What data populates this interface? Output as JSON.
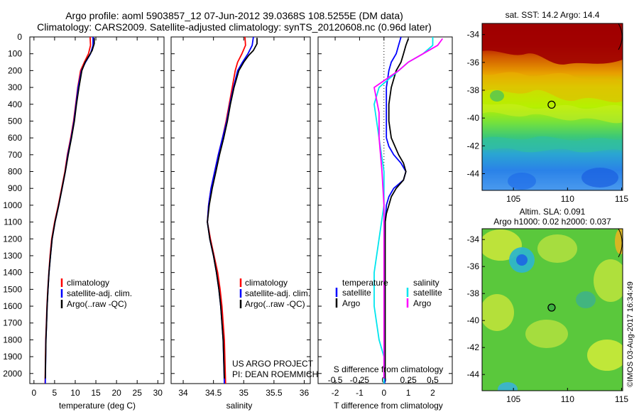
{
  "header": {
    "title_line1": "Argo profile: aoml 5903857_12 07-Jun-2012 39.0368S 108.5255E (DM data)",
    "title_line2": "Climatology: CARS2009. Satellite-adjusted climatology: synTS_20120608.nc (0.96d later)"
  },
  "depth_axis": {
    "ticks": [
      0,
      100,
      200,
      300,
      400,
      500,
      600,
      700,
      800,
      900,
      1000,
      1100,
      1200,
      1300,
      1400,
      1500,
      1600,
      1700,
      1800,
      1900,
      2000
    ],
    "range": [
      0,
      2060
    ]
  },
  "colors": {
    "climatology": "#ff0000",
    "satellite": "#0000ff",
    "argo": "#000000",
    "salinity_satellite": "#00e5ee",
    "salinity_argo": "#ff00ff"
  },
  "chart_data": [
    {
      "id": "temperature",
      "type": "line",
      "xlabel": "temperature (deg C)",
      "ylabel": "depth",
      "xlim": [
        -1,
        31.5
      ],
      "xticks": [
        0,
        5,
        10,
        15,
        20,
        25,
        30
      ],
      "legend": [
        "climatology",
        "satellite-adj. clim.",
        "Argo(..raw -QC)"
      ],
      "legend_position": "lower-right",
      "series": [
        {
          "name": "climatology",
          "color": "red",
          "x": [
            13.6,
            13.7,
            13.2,
            12.2,
            11.3,
            10.6,
            10.1,
            9.6,
            8.9,
            8.1,
            7.5,
            6.7,
            5.9,
            5.0,
            4.3,
            3.9,
            3.6,
            3.35,
            3.15,
            3.0,
            2.85,
            2.7
          ],
          "y": [
            0,
            50,
            100,
            150,
            200,
            300,
            400,
            500,
            600,
            700,
            800,
            900,
            1000,
            1100,
            1200,
            1300,
            1400,
            1500,
            1600,
            1700,
            1800,
            2060
          ]
        },
        {
          "name": "satellite-adj. clim.",
          "color": "blue",
          "x": [
            14.3,
            14.3,
            13.7,
            12.5,
            11.5,
            10.7,
            10.2,
            9.7,
            9.0,
            8.2,
            7.6,
            6.8,
            6.0,
            5.1,
            4.4,
            4.0,
            3.65,
            3.4,
            3.2,
            3.05,
            2.9,
            2.75
          ],
          "y": [
            0,
            50,
            100,
            150,
            200,
            300,
            400,
            500,
            600,
            700,
            800,
            900,
            1000,
            1100,
            1200,
            1300,
            1400,
            1500,
            1600,
            1700,
            1800,
            2060
          ]
        },
        {
          "name": "Argo(..raw -QC)",
          "color": "black",
          "x": [
            14.6,
            14.6,
            14.1,
            13.4,
            12.4,
            11.6,
            10.9,
            10.3,
            9.8,
            9.1,
            8.3,
            7.6,
            6.8,
            6.0,
            5.1,
            4.4,
            4.0,
            3.65,
            3.4,
            3.2,
            3.05,
            2.9,
            2.75
          ],
          "y": [
            5,
            40,
            80,
            110,
            150,
            200,
            300,
            400,
            500,
            600,
            700,
            800,
            900,
            1000,
            1100,
            1200,
            1300,
            1400,
            1500,
            1600,
            1700,
            1800,
            2030
          ]
        }
      ]
    },
    {
      "id": "salinity",
      "type": "line",
      "xlabel": "salinity",
      "xlim": [
        33.8,
        36.1
      ],
      "xticks": [
        34,
        34.5,
        35,
        35.5,
        36
      ],
      "xticklabels": [
        "34",
        "34.5",
        "35",
        "35.5",
        "36"
      ],
      "legend": [
        "climatology",
        "satellite-adj. clim.",
        "Argo(..raw -QC)"
      ],
      "legend_position": "lower-right",
      "annotation": [
        "US ARGO PROJECT",
        "PI: DEAN ROEMMICH"
      ],
      "series": [
        {
          "name": "climatology",
          "color": "red",
          "x": [
            35.02,
            35.03,
            34.97,
            34.9,
            34.86,
            34.81,
            34.76,
            34.71,
            34.65,
            34.58,
            34.52,
            34.46,
            34.42,
            34.4,
            34.45,
            34.51,
            34.57,
            34.61,
            34.64,
            34.66,
            34.68,
            34.7
          ],
          "y": [
            0,
            50,
            100,
            150,
            200,
            300,
            400,
            500,
            600,
            700,
            800,
            900,
            1000,
            1100,
            1200,
            1300,
            1400,
            1500,
            1600,
            1700,
            1800,
            2060
          ]
        },
        {
          "name": "satellite-adj. clim.",
          "color": "blue",
          "x": [
            35.16,
            35.14,
            35.07,
            34.98,
            34.9,
            34.83,
            34.77,
            34.72,
            34.65,
            34.58,
            34.52,
            34.46,
            34.42,
            34.4,
            34.44,
            34.5,
            34.55,
            34.59,
            34.62,
            34.64,
            34.66,
            34.68
          ],
          "y": [
            0,
            50,
            100,
            150,
            200,
            300,
            400,
            500,
            600,
            700,
            800,
            900,
            1000,
            1100,
            1200,
            1300,
            1400,
            1500,
            1600,
            1700,
            1800,
            2060
          ]
        },
        {
          "name": "Argo(..raw -QC)",
          "color": "black",
          "x": [
            35.22,
            35.22,
            35.16,
            35.08,
            35.0,
            34.92,
            34.84,
            34.78,
            34.73,
            34.67,
            34.6,
            34.54,
            34.48,
            34.43,
            34.4,
            34.44,
            34.5,
            34.55,
            34.59,
            34.62,
            34.64,
            34.66,
            34.68
          ],
          "y": [
            5,
            40,
            80,
            110,
            150,
            200,
            300,
            400,
            500,
            600,
            700,
            800,
            900,
            1000,
            1100,
            1200,
            1300,
            1400,
            1500,
            1600,
            1700,
            1800,
            2030
          ]
        }
      ]
    },
    {
      "id": "difference",
      "type": "line",
      "xlabel": "T difference from climatology",
      "xlabel_top": "S difference from climatology",
      "xlim": [
        -2.7,
        2.8
      ],
      "xticks": [
        -2,
        -1,
        0,
        1,
        2
      ],
      "s_xticklabels": [
        "-0.5",
        "-0.25",
        "0",
        "0.25",
        "0.5"
      ],
      "zero_line": "dotted",
      "legend_temperature": {
        "title": "temperature",
        "entries": [
          "satellite",
          "Argo"
        ]
      },
      "legend_salinity": {
        "title": "salinity",
        "entries": [
          "satellite",
          "Argo"
        ]
      },
      "legend_position": "lower-center",
      "series": [
        {
          "name": "temperature satellite",
          "color": "blue",
          "x": [
            0.7,
            0.6,
            0.5,
            0.3,
            0.2,
            0.1,
            0.1,
            0.1,
            0.1,
            0.2,
            0.4,
            0.7,
            0.9,
            0.8,
            0.4,
            0.2,
            0.1,
            0.05,
            0.03,
            0.03,
            0.03,
            0.03,
            0.03
          ],
          "y": [
            0,
            50,
            100,
            150,
            200,
            300,
            400,
            500,
            600,
            650,
            700,
            750,
            800,
            850,
            900,
            950,
            1000,
            1100,
            1300,
            1500,
            1700,
            1900,
            2060
          ]
        },
        {
          "name": "temperature Argo",
          "color": "black",
          "x": [
            1.0,
            0.9,
            0.8,
            0.7,
            0.5,
            0.3,
            0.2,
            0.2,
            0.3,
            0.6,
            0.8,
            0.9,
            0.8,
            0.5,
            0.3,
            0.2,
            0.1,
            0.05,
            0.05,
            0.05,
            0.05,
            0.05
          ],
          "y": [
            10,
            50,
            100,
            150,
            200,
            300,
            400,
            500,
            600,
            700,
            750,
            800,
            850,
            900,
            950,
            1000,
            1050,
            1100,
            1300,
            1500,
            1700,
            2030
          ]
        },
        {
          "name": "salinity satellite",
          "color": "cyan",
          "x": [
            0.5,
            0.5,
            0.4,
            0.25,
            0.15,
            -0.05,
            -0.1,
            -0.05,
            0.0,
            0.0,
            -0.05,
            -0.1,
            -0.1,
            -0.05,
            0.0,
            0.0
          ],
          "y": [
            0,
            50,
            100,
            150,
            200,
            300,
            400,
            600,
            800,
            1000,
            1200,
            1400,
            1600,
            1800,
            1900,
            2060
          ]
        },
        {
          "name": "salinity Argo",
          "color": "magenta",
          "x": [
            0.6,
            0.55,
            0.4,
            0.25,
            0.15,
            -0.1,
            -0.05,
            -0.05,
            -0.02,
            0.0,
            0.0,
            0.0,
            0.0
          ],
          "y": [
            10,
            50,
            100,
            150,
            200,
            300,
            450,
            600,
            800,
            1000,
            1200,
            1500,
            2030
          ]
        }
      ]
    }
  ],
  "maps": [
    {
      "id": "sst-map",
      "title": "sat. SST: 14.2 Argo: 14.4",
      "yticklabels": [
        "-34",
        "-36",
        "-38",
        "-40",
        "-42",
        "-44"
      ],
      "xticklabels": [
        "105",
        "110",
        "115"
      ],
      "lat_range": [
        -45.2,
        -33.2
      ],
      "lon_range": [
        102.1,
        115.1
      ],
      "marker": {
        "lon": 108.53,
        "lat": -39.04,
        "style": "open-circle"
      }
    },
    {
      "id": "sla-map",
      "title_line1": "Altim. SLA: 0.091",
      "title_line2": "Argo h1000: 0.02 h2000: 0.037",
      "yticklabels": [
        "-34",
        "-36",
        "-38",
        "-40",
        "-42",
        "-44"
      ],
      "xticklabels": [
        "105",
        "110",
        "115"
      ],
      "lat_range": [
        -45.2,
        -33.2
      ],
      "lon_range": [
        102.1,
        115.1
      ],
      "marker": {
        "lon": 108.53,
        "lat": -39.04,
        "style": "filled-circle"
      }
    }
  ],
  "watermark": "©IMOS 03-Aug-2017 16:34:49"
}
